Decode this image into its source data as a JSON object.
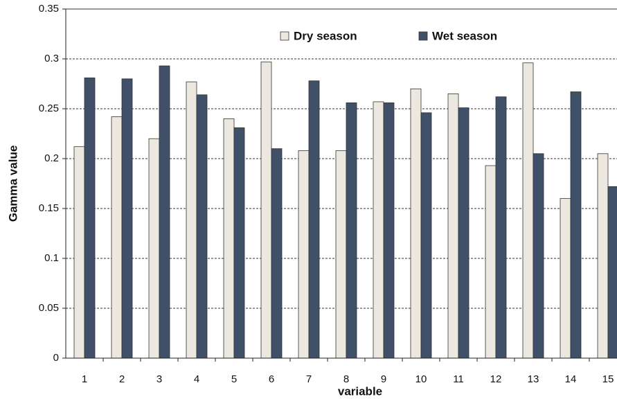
{
  "chart_data": {
    "type": "bar",
    "x_label": "variable",
    "y_label": "Gamma value",
    "categories": [
      "1",
      "2",
      "3",
      "4",
      "5",
      "6",
      "7",
      "8",
      "9",
      "10",
      "11",
      "12",
      "13",
      "14",
      "15"
    ],
    "series": [
      {
        "name": "Dry season",
        "color": "#ece8df",
        "values": [
          0.212,
          0.242,
          0.22,
          0.277,
          0.24,
          0.297,
          0.208,
          0.208,
          0.257,
          0.27,
          0.265,
          0.193,
          0.296,
          0.16,
          0.205
        ]
      },
      {
        "name": "Wet season",
        "color": "#3f5068",
        "values": [
          0.281,
          0.28,
          0.293,
          0.264,
          0.231,
          0.21,
          0.278,
          0.256,
          0.256,
          0.246,
          0.251,
          0.262,
          0.205,
          0.267,
          0.172
        ]
      }
    ],
    "ylim": [
      0,
      0.35
    ],
    "yticks": [
      0,
      0.05,
      0.1,
      0.15,
      0.2,
      0.25,
      0.3,
      0.35
    ],
    "grid": true
  }
}
